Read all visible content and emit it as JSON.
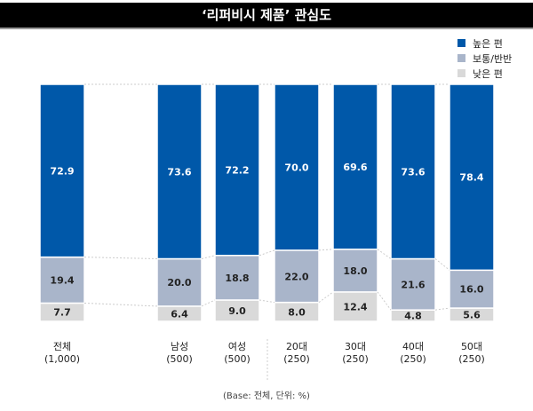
{
  "chart_data": {
    "type": "stacked-bar",
    "title": "‘리퍼비시 제품’ 관심도",
    "categories": [
      "전체\n(1,000)",
      "남성\n(500)",
      "여성\n(500)",
      "20대\n(250)",
      "30대\n(250)",
      "40대\n(250)",
      "50대\n(250)"
    ],
    "series": [
      {
        "name": "높은 편",
        "color": "#0058a9",
        "values": [
          72.9,
          73.6,
          72.2,
          70.0,
          69.6,
          73.6,
          78.4
        ]
      },
      {
        "name": "보통/반반",
        "color": "#a9b5ca",
        "values": [
          19.4,
          20.0,
          18.8,
          22.0,
          18.0,
          21.6,
          16.0
        ]
      },
      {
        "name": "낮은 편",
        "color": "#d9d9d9",
        "values": [
          7.7,
          6.4,
          9.0,
          8.0,
          12.4,
          4.8,
          5.6
        ]
      }
    ],
    "ylim": [
      0,
      100
    ],
    "legend": "top-right",
    "note": "(Base: 전체, 단위: %)"
  }
}
